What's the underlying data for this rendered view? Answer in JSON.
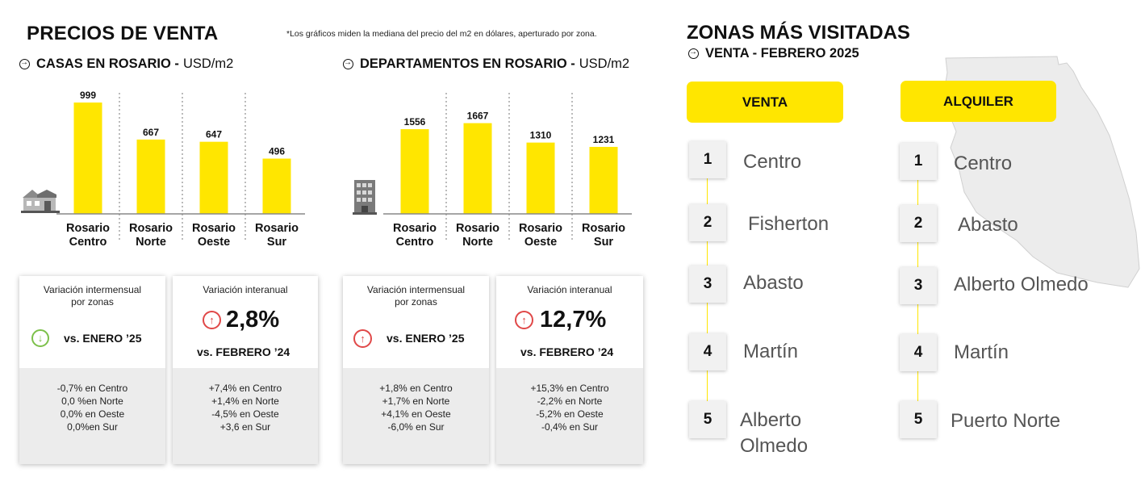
{
  "header": {
    "title": "PRECIOS DE VENTA",
    "footnote": "*Los gráficos miden  la mediana del precio del m2 en dólares, aperturado por zona."
  },
  "chart_data": [
    {
      "type": "bar",
      "title": "CASAS EN ROSARIO -",
      "unit": "USD/m2",
      "icon": "house-icon",
      "categories": [
        "Rosario Centro",
        "Rosario Norte",
        "Rosario Oeste",
        "Rosario Sur"
      ],
      "values": [
        999,
        667,
        647,
        496
      ],
      "ylim": [
        0,
        1050
      ],
      "grid": false,
      "color": "#ffe600"
    },
    {
      "type": "bar",
      "title": "DEPARTAMENTOS EN ROSARIO -",
      "unit": "USD/m2",
      "icon": "building-icon",
      "categories": [
        "Rosario Centro",
        "Rosario Norte",
        "Rosario Oeste",
        "Rosario Sur"
      ],
      "values": [
        1556,
        1667,
        1310,
        1231
      ],
      "ylim": [
        0,
        2150
      ],
      "grid": false,
      "color": "#ffe600"
    }
  ],
  "cards": {
    "casas_mensual": {
      "header": [
        "Variación intermensual",
        "por zonas"
      ],
      "direction": "down",
      "vs": "vs. ENERO ’25",
      "lines": [
        "-0,7% en Centro",
        "0,0 %en Norte",
        "0,0% en Oeste",
        "0,0%en Sur"
      ]
    },
    "casas_anual": {
      "header": [
        "Variación interanual"
      ],
      "direction": "up",
      "big": "2,8%",
      "vs": "vs. FEBRERO ’24",
      "lines": [
        "+7,4% en Centro",
        "+1,4% en Norte",
        "-4,5% en Oeste",
        "+3,6 en Sur"
      ]
    },
    "deptos_mensual": {
      "header": [
        "Variación intermensual",
        "por zonas"
      ],
      "direction": "up",
      "vs": "vs. ENERO ’25",
      "lines": [
        "+1,8% en Centro",
        "+1,7% en Norte",
        "+4,1% en Oeste",
        "-6,0% en Sur"
      ]
    },
    "deptos_anual": {
      "header": [
        "Variación interanual"
      ],
      "direction": "up",
      "big": "12,7%",
      "vs": "vs. FEBRERO ’24",
      "lines": [
        "+15,3% en Centro",
        "-2,2%  en Norte",
        "-5,2% en Oeste",
        "-0,4% en Sur"
      ]
    }
  },
  "zonas": {
    "title": "ZONAS MÁS VISITADAS",
    "subtitle": "VENTA - FEBRERO 2025",
    "colors": {
      "accent": "#ffe600",
      "up": "#e04848",
      "down": "#7cc04a"
    },
    "venta": {
      "label": "VENTA",
      "ranks": [
        "1",
        "2",
        "3",
        "4",
        "5"
      ],
      "names": [
        "Centro",
        "Fisherton",
        "Abasto",
        "Martín",
        "Alberto Olmedo"
      ]
    },
    "alquiler": {
      "label": "ALQUILER",
      "ranks": [
        "1",
        "2",
        "3",
        "4",
        "5"
      ],
      "names": [
        "Centro",
        "Abasto",
        "Alberto Olmedo",
        "Martín",
        "Puerto Norte"
      ]
    }
  }
}
